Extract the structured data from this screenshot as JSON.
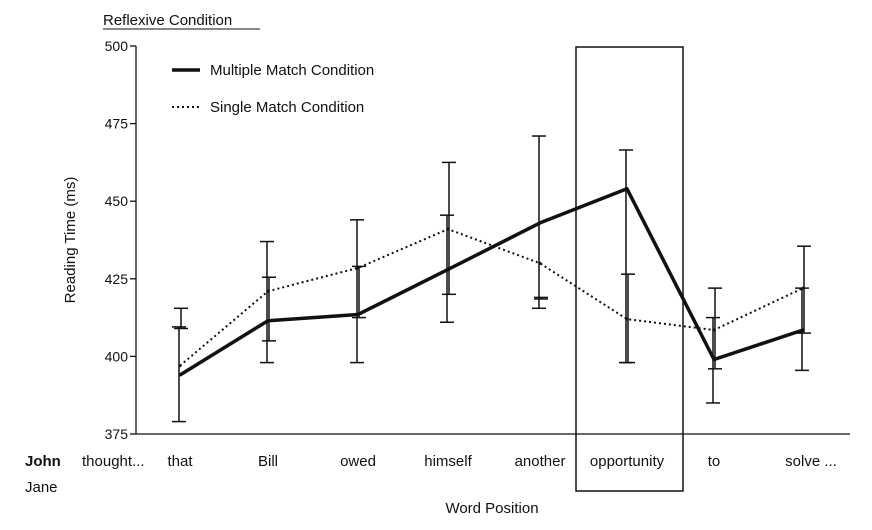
{
  "chart_data": {
    "type": "line",
    "title": "Reflexive Condition",
    "xlabel": "Word Position",
    "ylabel": "Reading Time (ms)",
    "ylim": [
      375,
      500
    ],
    "yticks": [
      375,
      400,
      425,
      450,
      475,
      500
    ],
    "grid": false,
    "legend_position": "top-left",
    "categories": [
      "that",
      "Bill",
      "owed",
      "himself",
      "another",
      "opportunity",
      "to",
      "solve ..."
    ],
    "sentence_prefix": {
      "name_bold": "John",
      "verb": "thought...",
      "alt_name": "Jane"
    },
    "highlighted_category": "opportunity",
    "series": [
      {
        "name": "Multiple Match Condition",
        "style": "solid",
        "values": [
          394,
          411.5,
          413.5,
          428,
          443,
          454,
          399,
          408.5
        ],
        "err_low": [
          379,
          398,
          398,
          411,
          415.5,
          398,
          385,
          395.5
        ],
        "err_high": [
          409.5,
          437,
          444,
          445.5,
          471,
          466.5,
          412.5,
          422
        ]
      },
      {
        "name": "Single Match Condition",
        "style": "dotted",
        "values": [
          397,
          421,
          428.5,
          441,
          430,
          412,
          408.5,
          422
        ],
        "err_low": [
          409,
          405,
          412.5,
          420,
          418.5,
          398,
          396,
          407.5
        ],
        "err_high": [
          415.5,
          425.5,
          429,
          462.5,
          419,
          426.5,
          422,
          435.5
        ]
      }
    ]
  }
}
